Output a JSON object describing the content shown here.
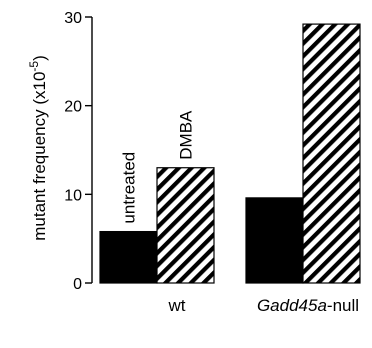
{
  "chart_data": {
    "type": "bar",
    "categories": [
      "wt",
      "Gadd45a-null"
    ],
    "category_display": [
      {
        "text": "wt",
        "italic_part": "",
        "rest": "wt"
      },
      {
        "text": "Gadd45a-null",
        "italic_part": "Gadd45a",
        "rest": "-null"
      }
    ],
    "series": [
      {
        "name": "untreated",
        "values": [
          5.8,
          9.6
        ]
      },
      {
        "name": "DMBA",
        "values": [
          13.0,
          29.2
        ]
      }
    ],
    "ylabel": "mutant frequency (x10-5)",
    "ylabel_parts": {
      "base": "mutant frequency (x10",
      "sup": "-5",
      "close": ")"
    },
    "ylim": [
      0,
      30
    ],
    "yticks": [
      "0",
      "10",
      "20",
      "30"
    ],
    "grid": false,
    "legend": "in-plot labels above first group",
    "series_fill": {
      "untreated": "solid black",
      "DMBA": "diagonal hatch"
    },
    "colors": {
      "bar": "#000000",
      "hatch_bg": "#ffffff"
    }
  }
}
